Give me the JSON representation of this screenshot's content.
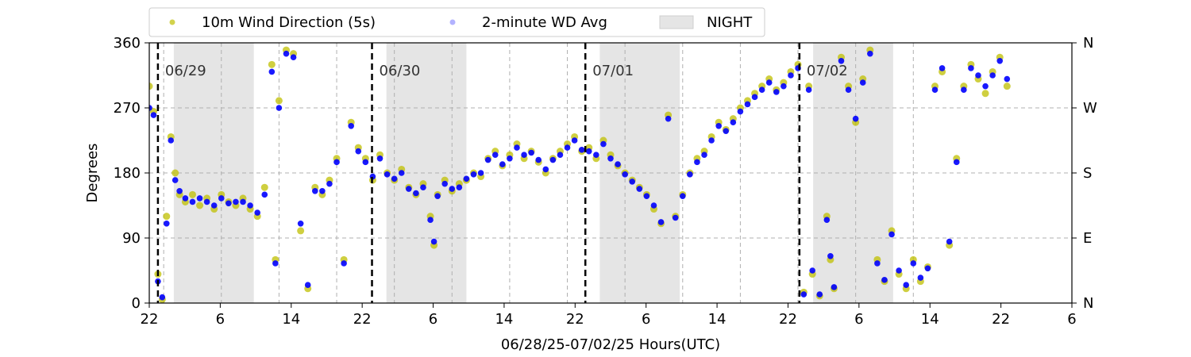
{
  "chart_data": {
    "type": "scatter",
    "xlabel": "06/28/25-07/02/25  Hours(UTC)",
    "ylabel": "Degrees",
    "ylim": [
      0,
      360
    ],
    "xlim_hours": [
      0,
      128
    ],
    "x_tick_labels": [
      "22",
      "6",
      "14",
      "22",
      "6",
      "14",
      "22",
      "6",
      "14",
      "22",
      "6",
      "14",
      "22",
      "6"
    ],
    "y_ticks": [
      0,
      90,
      180,
      270,
      360
    ],
    "y_tick_labels": [
      "0",
      "90",
      "180",
      "270",
      "360"
    ],
    "y2_tick_labels": [
      "N",
      "E",
      "S",
      "W",
      "N"
    ],
    "grid": true,
    "legend_position": "top-center, above plot",
    "legend": [
      {
        "label": "10m Wind Direction (5s)",
        "marker": "dot",
        "color": "#bfbf00"
      },
      {
        "label": "2-minute WD Avg",
        "marker": "dot",
        "color": "#0000ff"
      },
      {
        "label": "NIGHT",
        "marker": "band",
        "color": "#e5e5e5"
      }
    ],
    "day_markers": [
      {
        "label": "06/29",
        "x": 1.2
      },
      {
        "label": "06/30",
        "x": 30.9
      },
      {
        "label": "07/01",
        "x": 60.5
      },
      {
        "label": "07/02",
        "x": 90.2
      }
    ],
    "night_bands": [
      [
        3.4,
        14.5
      ],
      [
        32.9,
        44.0
      ],
      [
        62.5,
        73.6
      ],
      [
        92.1,
        103.2
      ]
    ],
    "series": [
      {
        "name": "10m Wind Direction (5s)",
        "color": "#bfbf00",
        "points": [
          [
            0,
            300
          ],
          [
            0.6,
            265
          ],
          [
            1.2,
            40
          ],
          [
            1.8,
            5
          ],
          [
            2.4,
            120
          ],
          [
            3.0,
            230
          ],
          [
            3.6,
            180
          ],
          [
            4.2,
            150
          ],
          [
            5,
            140
          ],
          [
            6,
            150
          ],
          [
            7,
            135
          ],
          [
            8,
            145
          ],
          [
            9,
            130
          ],
          [
            10,
            150
          ],
          [
            11,
            140
          ],
          [
            12,
            135
          ],
          [
            13,
            145
          ],
          [
            14,
            130
          ],
          [
            15,
            120
          ],
          [
            16,
            160
          ],
          [
            17,
            330
          ],
          [
            17.5,
            60
          ],
          [
            18,
            280
          ],
          [
            19,
            350
          ],
          [
            20,
            345
          ],
          [
            21,
            100
          ],
          [
            22,
            20
          ],
          [
            23,
            160
          ],
          [
            24,
            150
          ],
          [
            25,
            170
          ],
          [
            26,
            200
          ],
          [
            27,
            60
          ],
          [
            28,
            250
          ],
          [
            29,
            215
          ],
          [
            30,
            200
          ],
          [
            31,
            170
          ],
          [
            32,
            205
          ],
          [
            33,
            180
          ],
          [
            34,
            170
          ],
          [
            35,
            185
          ],
          [
            36,
            160
          ],
          [
            37,
            150
          ],
          [
            38,
            165
          ],
          [
            39,
            120
          ],
          [
            39.5,
            80
          ],
          [
            40,
            150
          ],
          [
            41,
            170
          ],
          [
            42,
            155
          ],
          [
            43,
            165
          ],
          [
            44,
            170
          ],
          [
            45,
            180
          ],
          [
            46,
            175
          ],
          [
            47,
            200
          ],
          [
            48,
            210
          ],
          [
            49,
            190
          ],
          [
            50,
            205
          ],
          [
            51,
            220
          ],
          [
            52,
            200
          ],
          [
            53,
            210
          ],
          [
            54,
            195
          ],
          [
            55,
            180
          ],
          [
            56,
            200
          ],
          [
            57,
            210
          ],
          [
            58,
            220
          ],
          [
            59,
            230
          ],
          [
            60,
            210
          ],
          [
            61,
            215
          ],
          [
            62,
            200
          ],
          [
            63,
            225
          ],
          [
            64,
            205
          ],
          [
            65,
            190
          ],
          [
            66,
            180
          ],
          [
            67,
            170
          ],
          [
            68,
            160
          ],
          [
            69,
            150
          ],
          [
            70,
            130
          ],
          [
            71,
            110
          ],
          [
            72,
            260
          ],
          [
            73,
            120
          ],
          [
            74,
            150
          ],
          [
            75,
            180
          ],
          [
            76,
            200
          ],
          [
            77,
            210
          ],
          [
            78,
            230
          ],
          [
            79,
            250
          ],
          [
            80,
            240
          ],
          [
            81,
            255
          ],
          [
            82,
            270
          ],
          [
            83,
            280
          ],
          [
            84,
            290
          ],
          [
            85,
            300
          ],
          [
            86,
            310
          ],
          [
            87,
            295
          ],
          [
            88,
            305
          ],
          [
            89,
            320
          ],
          [
            90,
            330
          ],
          [
            90.8,
            15
          ],
          [
            91.5,
            300
          ],
          [
            92,
            40
          ],
          [
            93,
            10
          ],
          [
            94,
            120
          ],
          [
            94.5,
            60
          ],
          [
            95,
            20
          ],
          [
            96,
            340
          ],
          [
            97,
            300
          ],
          [
            98,
            250
          ],
          [
            99,
            310
          ],
          [
            100,
            350
          ],
          [
            101,
            60
          ],
          [
            102,
            30
          ],
          [
            103,
            100
          ],
          [
            104,
            40
          ],
          [
            105,
            20
          ],
          [
            106,
            60
          ],
          [
            107,
            30
          ],
          [
            108,
            50
          ],
          [
            109,
            300
          ],
          [
            110,
            320
          ],
          [
            111,
            80
          ],
          [
            112,
            200
          ],
          [
            113,
            300
          ],
          [
            114,
            330
          ],
          [
            115,
            310
          ],
          [
            116,
            290
          ],
          [
            117,
            320
          ],
          [
            118,
            340
          ],
          [
            119,
            300
          ]
        ]
      },
      {
        "name": "2-minute WD Avg",
        "color": "#0000ff",
        "points": [
          [
            0,
            270
          ],
          [
            0.6,
            260
          ],
          [
            1.2,
            30
          ],
          [
            1.8,
            8
          ],
          [
            2.4,
            110
          ],
          [
            3.0,
            225
          ],
          [
            3.6,
            170
          ],
          [
            4.2,
            155
          ],
          [
            5,
            145
          ],
          [
            6,
            140
          ],
          [
            7,
            145
          ],
          [
            8,
            140
          ],
          [
            9,
            135
          ],
          [
            10,
            145
          ],
          [
            11,
            138
          ],
          [
            12,
            140
          ],
          [
            13,
            140
          ],
          [
            14,
            135
          ],
          [
            15,
            125
          ],
          [
            16,
            150
          ],
          [
            17,
            320
          ],
          [
            17.5,
            55
          ],
          [
            18,
            270
          ],
          [
            19,
            345
          ],
          [
            20,
            340
          ],
          [
            21,
            110
          ],
          [
            22,
            25
          ],
          [
            23,
            155
          ],
          [
            24,
            155
          ],
          [
            25,
            165
          ],
          [
            26,
            195
          ],
          [
            27,
            55
          ],
          [
            28,
            245
          ],
          [
            29,
            210
          ],
          [
            30,
            195
          ],
          [
            31,
            175
          ],
          [
            32,
            200
          ],
          [
            33,
            178
          ],
          [
            34,
            172
          ],
          [
            35,
            180
          ],
          [
            36,
            158
          ],
          [
            37,
            152
          ],
          [
            38,
            160
          ],
          [
            39,
            115
          ],
          [
            39.5,
            85
          ],
          [
            40,
            148
          ],
          [
            41,
            165
          ],
          [
            42,
            158
          ],
          [
            43,
            160
          ],
          [
            44,
            172
          ],
          [
            45,
            178
          ],
          [
            46,
            180
          ],
          [
            47,
            198
          ],
          [
            48,
            205
          ],
          [
            49,
            192
          ],
          [
            50,
            200
          ],
          [
            51,
            215
          ],
          [
            52,
            205
          ],
          [
            53,
            208
          ],
          [
            54,
            198
          ],
          [
            55,
            185
          ],
          [
            56,
            198
          ],
          [
            57,
            205
          ],
          [
            58,
            215
          ],
          [
            59,
            225
          ],
          [
            60,
            212
          ],
          [
            61,
            210
          ],
          [
            62,
            205
          ],
          [
            63,
            220
          ],
          [
            64,
            200
          ],
          [
            65,
            192
          ],
          [
            66,
            178
          ],
          [
            67,
            168
          ],
          [
            68,
            158
          ],
          [
            69,
            148
          ],
          [
            70,
            135
          ],
          [
            71,
            112
          ],
          [
            72,
            255
          ],
          [
            73,
            118
          ],
          [
            74,
            148
          ],
          [
            75,
            178
          ],
          [
            76,
            195
          ],
          [
            77,
            205
          ],
          [
            78,
            225
          ],
          [
            79,
            245
          ],
          [
            80,
            238
          ],
          [
            81,
            250
          ],
          [
            82,
            265
          ],
          [
            83,
            275
          ],
          [
            84,
            285
          ],
          [
            85,
            295
          ],
          [
            86,
            305
          ],
          [
            87,
            292
          ],
          [
            88,
            300
          ],
          [
            89,
            315
          ],
          [
            90,
            325
          ],
          [
            90.8,
            12
          ],
          [
            91.5,
            295
          ],
          [
            92,
            45
          ],
          [
            93,
            12
          ],
          [
            94,
            115
          ],
          [
            94.5,
            65
          ],
          [
            95,
            22
          ],
          [
            96,
            335
          ],
          [
            97,
            295
          ],
          [
            98,
            255
          ],
          [
            99,
            305
          ],
          [
            100,
            345
          ],
          [
            101,
            55
          ],
          [
            102,
            32
          ],
          [
            103,
            95
          ],
          [
            104,
            45
          ],
          [
            105,
            25
          ],
          [
            106,
            55
          ],
          [
            107,
            35
          ],
          [
            108,
            48
          ],
          [
            109,
            295
          ],
          [
            110,
            325
          ],
          [
            111,
            85
          ],
          [
            112,
            195
          ],
          [
            113,
            295
          ],
          [
            114,
            325
          ],
          [
            115,
            315
          ],
          [
            116,
            300
          ],
          [
            117,
            315
          ],
          [
            118,
            335
          ],
          [
            119,
            310
          ]
        ]
      }
    ]
  }
}
